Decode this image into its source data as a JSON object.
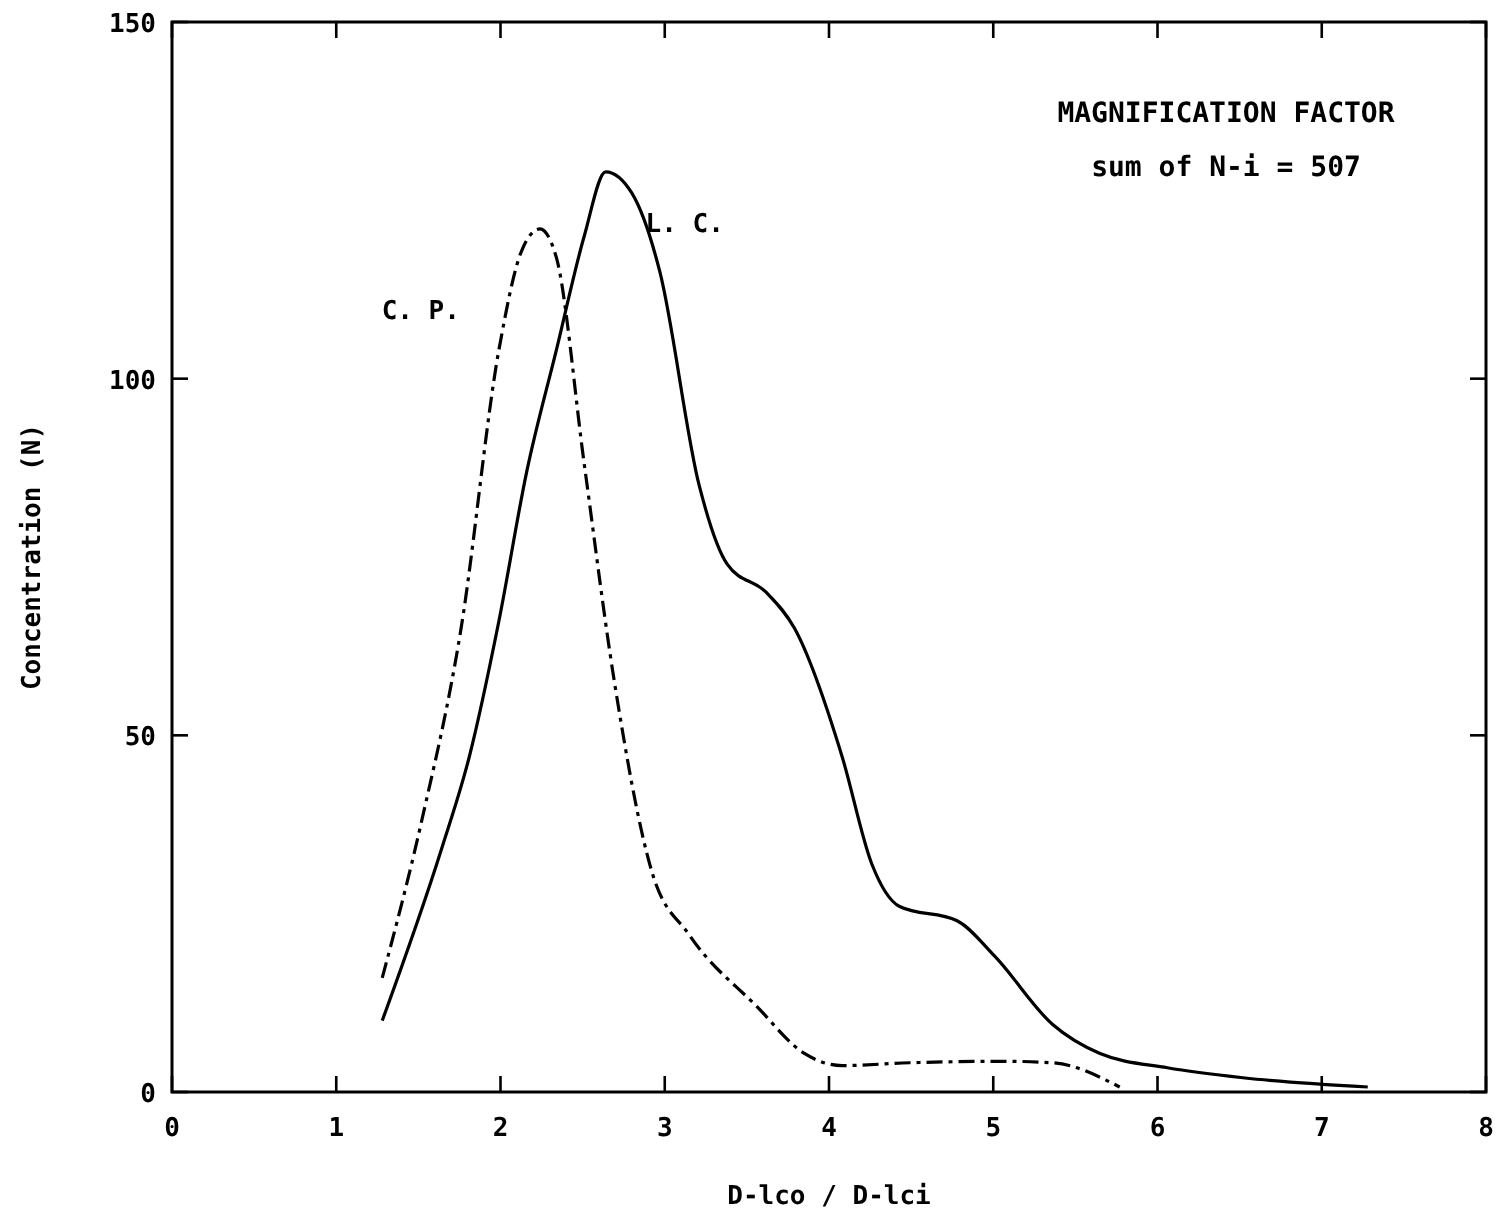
{
  "chart_data": {
    "type": "line",
    "xlabel": "D-lco / D-lci",
    "ylabel": "Concentration (N)",
    "xlim": [
      0,
      8
    ],
    "xticks": [
      0,
      1,
      2,
      3,
      4,
      5,
      6,
      7,
      8
    ],
    "ylim": [
      0,
      150
    ],
    "yticks": [
      0,
      50,
      100,
      150
    ],
    "annotations": [
      "MAGNIFICATION FACTOR",
      "sum of N-i = 507"
    ],
    "series": [
      {
        "name": "C. P.",
        "color": "#000000",
        "line_style": "dashed",
        "x": [
          1.28,
          1.52,
          1.76,
          1.99,
          2.13,
          2.24,
          2.34,
          2.51,
          2.69,
          2.92,
          3.15,
          3.56,
          3.85,
          4.08,
          4.49,
          5.07,
          5.36,
          5.77
        ],
        "values": [
          16,
          38,
          65,
          104,
          118,
          121,
          117,
          88,
          58,
          31,
          22,
          12,
          5.4,
          3.7,
          4.1,
          4.3,
          4.1,
          0.7
        ]
      },
      {
        "name": "L. C.",
        "color": "#000000",
        "line_style": "solid",
        "x": [
          1.28,
          1.64,
          1.81,
          1.99,
          2.16,
          2.34,
          2.51,
          2.64,
          2.8,
          2.97,
          3.21,
          3.38,
          3.62,
          3.79,
          4.08,
          4.26,
          4.43,
          4.78,
          5.01,
          5.36,
          5.65,
          6.06,
          6.52,
          7.28
        ],
        "values": [
          10,
          34,
          47,
          66,
          87,
          104,
          120,
          129,
          126,
          115,
          85,
          74,
          70,
          65,
          47,
          32,
          26,
          24,
          19,
          9.5,
          5.4,
          3.4,
          2,
          0.7
        ]
      }
    ]
  }
}
